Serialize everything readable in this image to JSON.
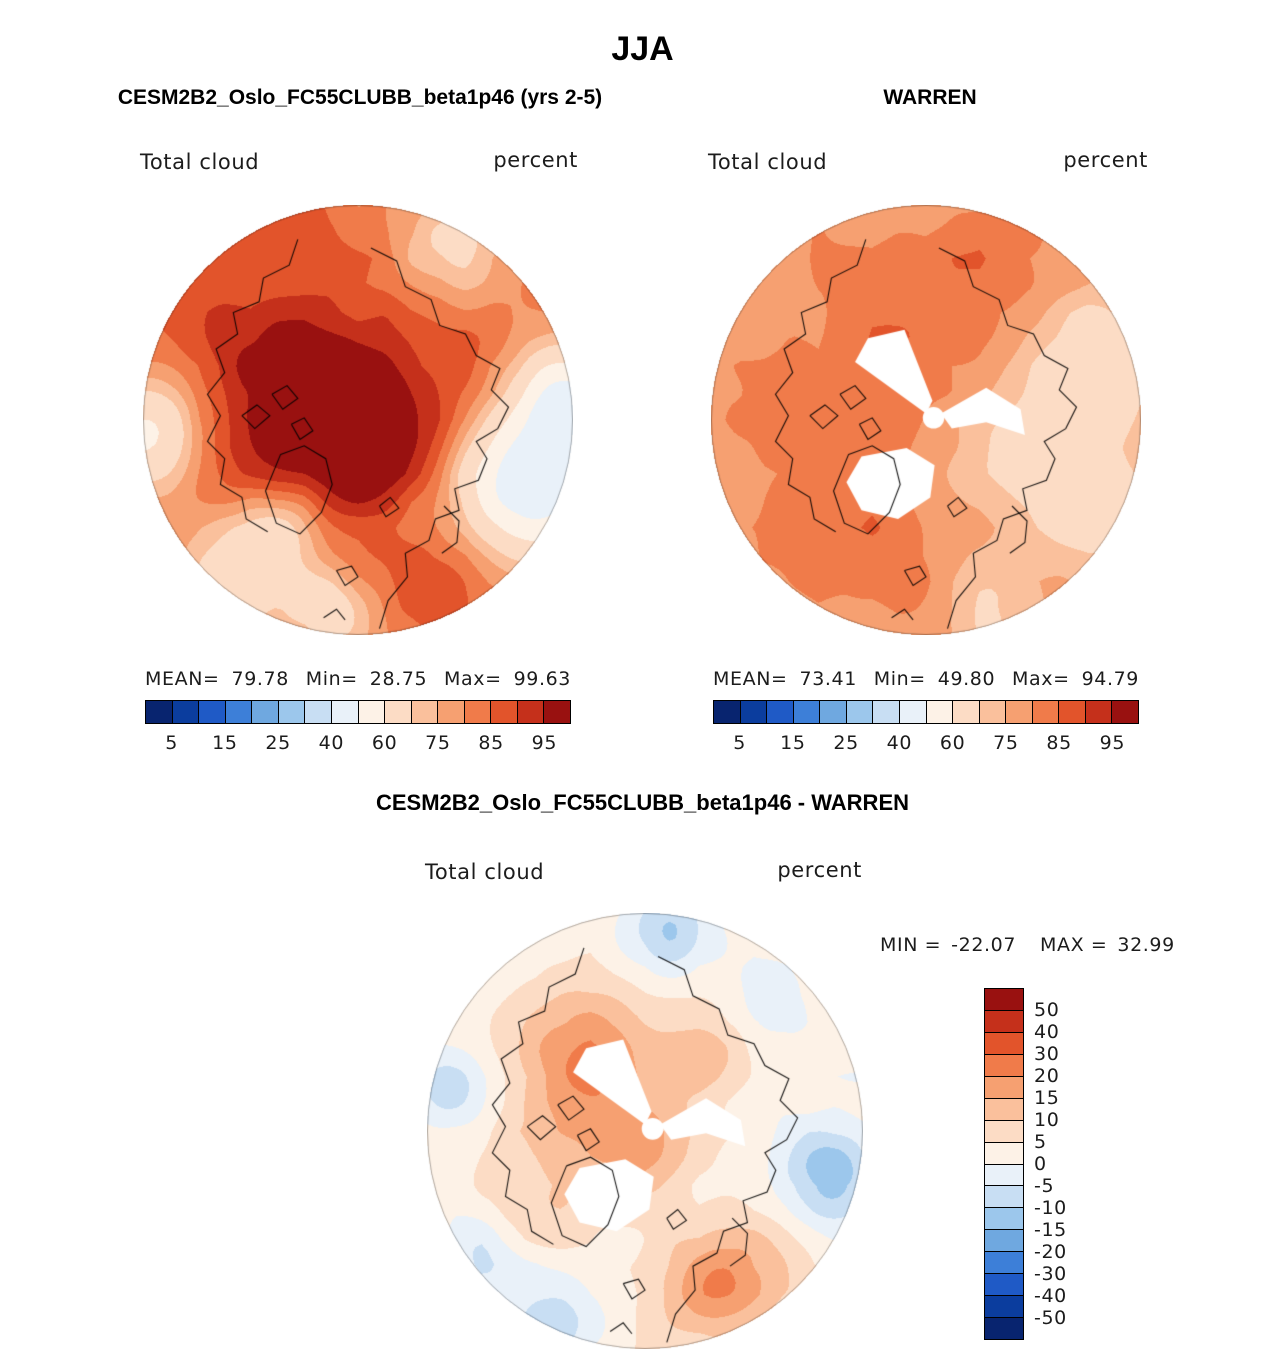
{
  "page_title": "JJA",
  "model_panel": {
    "title": "CESM2B2_Oslo_FC55CLUBB_beta1p46 (yrs 2-5)",
    "field_label": "Total cloud",
    "units_label": "percent",
    "mean_label": "MEAN=",
    "mean": "79.78",
    "min_label": "Min=",
    "min": "28.75",
    "max_label": "Max=",
    "max": "99.63"
  },
  "obs_panel": {
    "title": "WARREN",
    "field_label": "Total cloud",
    "units_label": "percent",
    "mean_label": "MEAN=",
    "mean": "73.41",
    "min_label": "Min=",
    "min": "49.80",
    "max_label": "Max=",
    "max": "94.79"
  },
  "diff_panel": {
    "title": "CESM2B2_Oslo_FC55CLUBB_beta1p46 - WARREN",
    "field_label": "Total cloud",
    "units_label": "percent",
    "min_label": "MIN =",
    "min": "-22.07",
    "max_label": "MAX =",
    "max": "32.99"
  },
  "colors": {
    "background": "#ffffff",
    "coastline": "#000000",
    "missing_data": "#ffffff",
    "palette": [
      "#08246f",
      "#0b3d9e",
      "#1f5ac6",
      "#3d7fd8",
      "#6fa8e0",
      "#9cc7ec",
      "#c8def3",
      "#e9f1f9",
      "#fdf2e7",
      "#fcdcc5",
      "#fac09c",
      "#f6a071",
      "#f07b4a",
      "#e2542b",
      "#c5301b",
      "#991110"
    ]
  },
  "chart_data": [
    {
      "type": "heatmap",
      "subtype": "filled-contour-map",
      "projection": "north-polar-stereographic",
      "season": "JJA",
      "title": "CESM2B2_Oslo_FC55CLUBB_beta1p46 (yrs 2-5)",
      "variable": "Total cloud",
      "units": "percent",
      "stats": {
        "mean": 79.78,
        "min": 28.75,
        "max": 99.63
      },
      "levels": [
        5,
        10,
        15,
        20,
        25,
        30,
        40,
        50,
        60,
        70,
        75,
        80,
        85,
        90,
        95
      ],
      "colorbar_ticks": [
        5,
        15,
        25,
        40,
        60,
        75,
        85,
        95
      ],
      "colorbar_orientation": "horizontal"
    },
    {
      "type": "heatmap",
      "subtype": "filled-contour-map",
      "projection": "north-polar-stereographic",
      "season": "JJA",
      "title": "WARREN",
      "variable": "Total cloud",
      "units": "percent",
      "stats": {
        "mean": 73.41,
        "min": 49.8,
        "max": 94.79
      },
      "levels": [
        5,
        10,
        15,
        20,
        25,
        30,
        40,
        50,
        60,
        70,
        75,
        80,
        85,
        90,
        95
      ],
      "colorbar_ticks": [
        5,
        15,
        25,
        40,
        60,
        75,
        85,
        95
      ],
      "colorbar_orientation": "horizontal",
      "missing_data_regions": "white wedges and patches near the pole"
    },
    {
      "type": "heatmap",
      "subtype": "filled-contour-difference-map",
      "projection": "north-polar-stereographic",
      "season": "JJA",
      "title": "CESM2B2_Oslo_FC55CLUBB_beta1p46 - WARREN",
      "variable": "Total cloud",
      "units": "percent",
      "stats": {
        "min": -22.07,
        "max": 32.99
      },
      "levels": [
        -50,
        -40,
        -30,
        -20,
        -15,
        -10,
        -5,
        0,
        5,
        10,
        15,
        20,
        30,
        40,
        50
      ],
      "colorbar_ticks": [
        50,
        40,
        30,
        20,
        15,
        10,
        5,
        0,
        -5,
        -10,
        -15,
        -20,
        -30,
        -40,
        -50
      ],
      "colorbar_orientation": "vertical",
      "missing_data_regions": "white wedges and patches near the pole"
    }
  ]
}
